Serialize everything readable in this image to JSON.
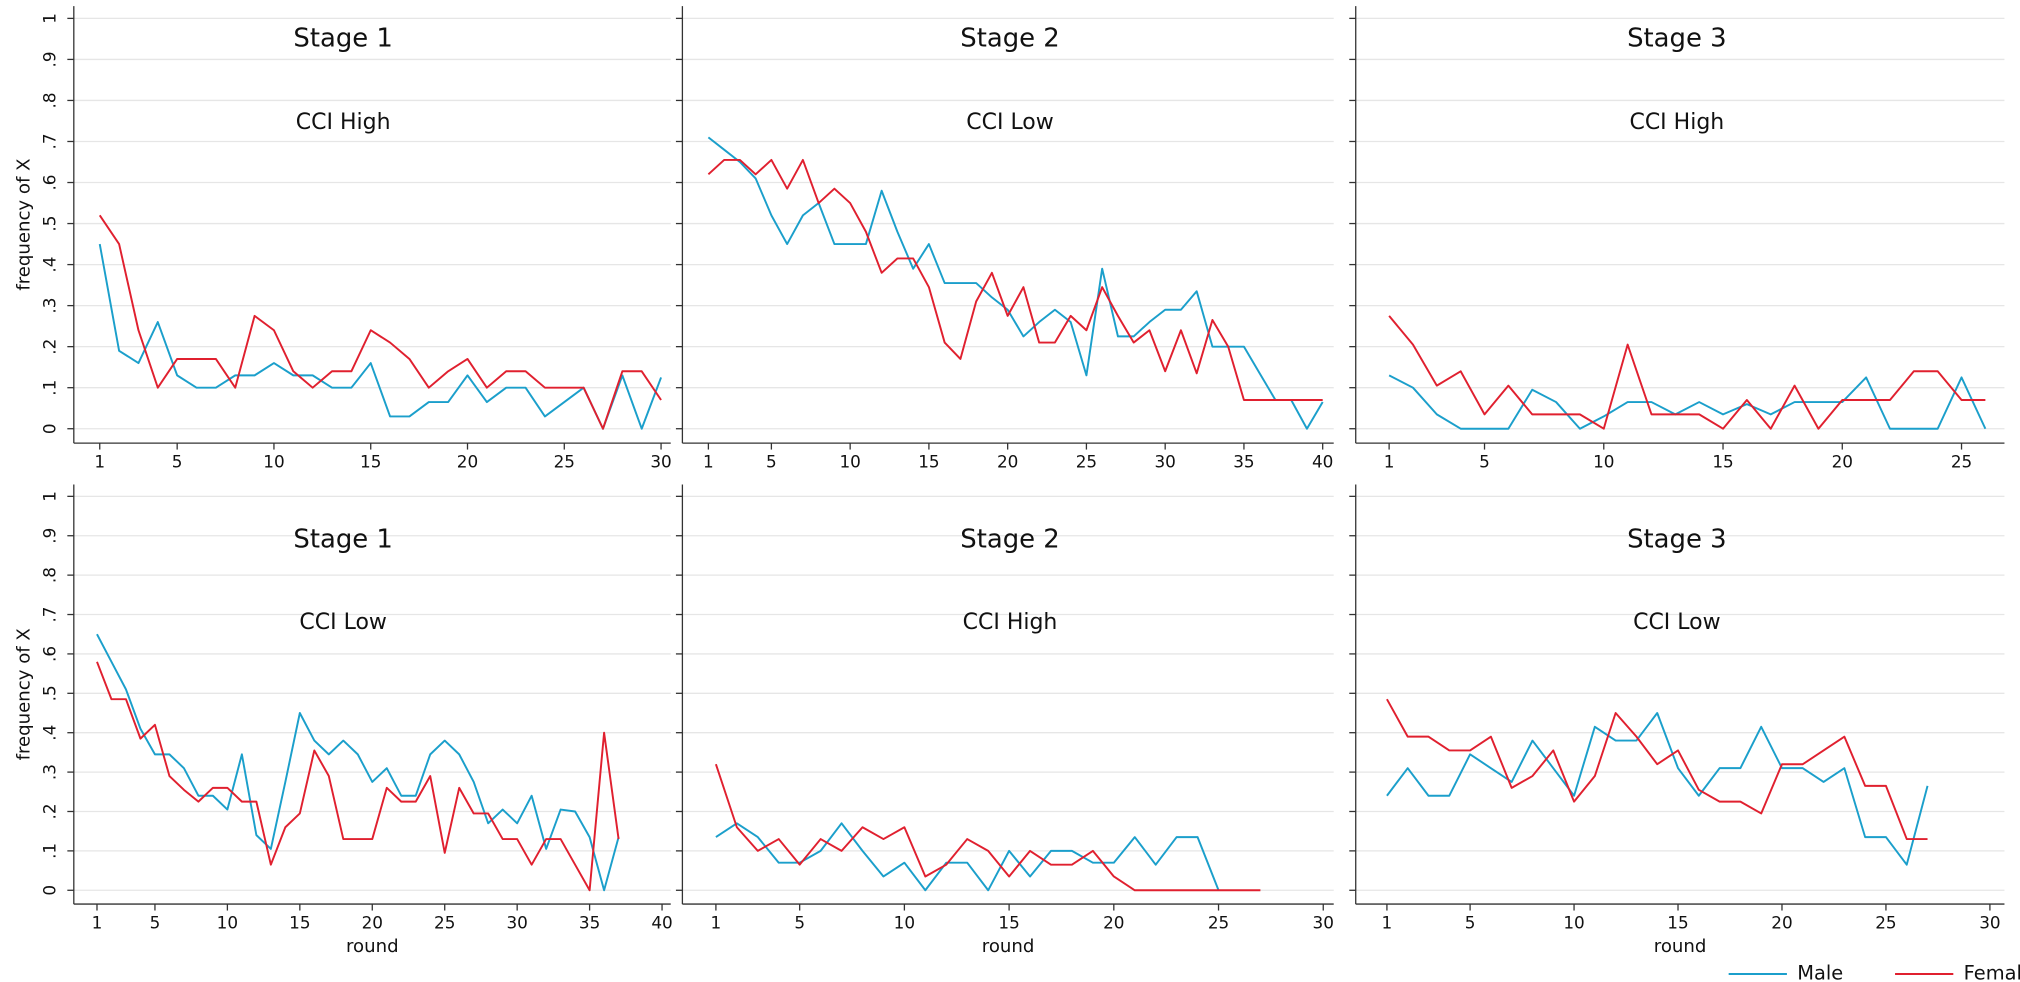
{
  "chart_data": {
    "type": "line",
    "ylabel": "frequency of X",
    "xlabel": "round",
    "ylim": [
      -0.035,
      1.03
    ],
    "yticks": [
      0,
      {
        "value": 0.1,
        "label": ".1"
      },
      {
        "value": 0.2,
        "label": ".2"
      },
      {
        "value": 0.3,
        "label": ".3"
      },
      {
        "value": 0.4,
        "label": ".4"
      },
      {
        "value": 0.5,
        "label": ".5"
      },
      {
        "value": 0.6,
        "label": ".6"
      },
      {
        "value": 0.7,
        "label": ".7"
      },
      {
        "value": 0.8,
        "label": ".8"
      },
      {
        "value": 0.9,
        "label": ".9"
      },
      1
    ],
    "grid": true,
    "legend": {
      "position": "bottom-right",
      "series": [
        {
          "name": "Male",
          "color": "#1b9fcb"
        },
        {
          "name": "Female",
          "color": "#e0202f"
        }
      ]
    },
    "panels": [
      {
        "title": "Stage 1",
        "subtitle": "CCI High",
        "xlim": [
          -0.34,
          30.5
        ],
        "xticks": [
          1,
          5,
          10,
          15,
          20,
          25,
          30
        ],
        "series": [
          {
            "x": [
              1,
              2,
              3,
              4,
              5,
              6,
              7,
              8,
              9,
              10,
              11,
              12,
              13,
              14,
              15,
              16,
              17,
              18,
              19,
              20,
              21,
              22,
              23,
              24,
              25,
              26,
              27,
              28,
              29,
              30
            ],
            "values": [
              0.45,
              0.19,
              0.16,
              0.26,
              0.13,
              0.1,
              0.1,
              0.13,
              0.13,
              0.16,
              0.13,
              0.13,
              0.1,
              0.1,
              0.16,
              0.03,
              0.03,
              0.065,
              0.065,
              0.13,
              0.065,
              0.1,
              0.1,
              0.03,
              0.065,
              0.1,
              0,
              0.13,
              0,
              0.125
            ]
          },
          {
            "x": [
              1,
              2,
              3,
              4,
              5,
              6,
              7,
              8,
              9,
              10,
              11,
              12,
              13,
              14,
              15,
              16,
              17,
              18,
              19,
              20,
              21,
              22,
              23,
              24,
              25,
              26,
              27,
              28,
              29,
              30
            ],
            "values": [
              0.52,
              0.45,
              0.24,
              0.1,
              0.17,
              0.17,
              0.17,
              0.1,
              0.275,
              0.24,
              0.14,
              0.1,
              0.14,
              0.14,
              0.24,
              0.21,
              0.17,
              0.1,
              0.14,
              0.17,
              0.1,
              0.14,
              0.14,
              0.1,
              0.1,
              0.1,
              0,
              0.14,
              0.14,
              0.07
            ]
          }
        ]
      },
      {
        "title": "Stage 2",
        "subtitle": "CCI Low",
        "xlim": [
          -0.65,
          40.7
        ],
        "xticks": [
          1,
          5,
          10,
          15,
          20,
          25,
          30,
          35,
          40
        ],
        "series": [
          {
            "x": [
              1,
              2,
              3,
              4,
              5,
              6,
              7,
              8,
              9,
              10,
              11,
              12,
              13,
              14,
              15,
              16,
              17,
              18,
              19,
              20,
              21,
              22,
              23,
              24,
              25,
              26,
              27,
              28,
              29,
              30,
              31,
              32,
              33,
              34,
              35,
              36,
              37,
              38,
              39,
              40
            ],
            "values": [
              0.71,
              0.68,
              0.65,
              0.61,
              0.52,
              0.45,
              0.52,
              0.55,
              0.45,
              0.45,
              0.45,
              0.58,
              0.48,
              0.39,
              0.45,
              0.355,
              0.355,
              0.355,
              0.32,
              0.29,
              0.225,
              0.26,
              0.29,
              0.26,
              0.13,
              0.39,
              0.225,
              0.225,
              0.26,
              0.29,
              0.29,
              0.335,
              0.2,
              0.2,
              0.2,
              0.135,
              0.07,
              0.07,
              0,
              0.065
            ]
          },
          {
            "x": [
              1,
              2,
              3,
              4,
              5,
              6,
              7,
              8,
              9,
              10,
              11,
              12,
              13,
              14,
              15,
              16,
              17,
              18,
              19,
              20,
              21,
              22,
              23,
              24,
              25,
              26,
              27,
              28,
              29,
              30,
              31,
              32,
              33,
              34,
              35,
              36,
              37,
              38,
              39,
              40
            ],
            "values": [
              0.62,
              0.655,
              0.655,
              0.62,
              0.655,
              0.585,
              0.655,
              0.55,
              0.585,
              0.55,
              0.48,
              0.38,
              0.415,
              0.415,
              0.345,
              0.21,
              0.17,
              0.31,
              0.38,
              0.275,
              0.345,
              0.21,
              0.21,
              0.275,
              0.24,
              0.345,
              0.275,
              0.21,
              0.24,
              0.14,
              0.24,
              0.135,
              0.265,
              0.2,
              0.07,
              0.07,
              0.07,
              0.07,
              0.07,
              0.07
            ]
          }
        ]
      },
      {
        "title": "Stage 3",
        "subtitle": "CCI High",
        "xlim": [
          -0.4,
          26.8
        ],
        "xticks": [
          1,
          5,
          10,
          15,
          20,
          25
        ],
        "series": [
          {
            "x": [
              1,
              2,
              3,
              4,
              5,
              6,
              7,
              8,
              9,
              10,
              11,
              12,
              13,
              14,
              15,
              16,
              17,
              18,
              19,
              20,
              21,
              22,
              23,
              24,
              25,
              26
            ],
            "values": [
              0.13,
              0.1,
              0.035,
              0,
              0,
              0,
              0.095,
              0.065,
              0,
              0.03,
              0.065,
              0.065,
              0.035,
              0.065,
              0.035,
              0.06,
              0.035,
              0.065,
              0.065,
              0.065,
              0.125,
              0,
              0,
              0,
              0.125,
              0
            ]
          },
          {
            "x": [
              1,
              2,
              3,
              4,
              5,
              6,
              7,
              8,
              9,
              10,
              11,
              12,
              13,
              14,
              15,
              16,
              17,
              18,
              19,
              20,
              21,
              22,
              23,
              24,
              25,
              26
            ],
            "values": [
              0.275,
              0.205,
              0.105,
              0.14,
              0.035,
              0.105,
              0.035,
              0.035,
              0.035,
              0,
              0.205,
              0.035,
              0.035,
              0.035,
              0,
              0.07,
              0,
              0.105,
              0,
              0.07,
              0.07,
              0.07,
              0.14,
              0.14,
              0.07,
              0.07
            ]
          }
        ]
      },
      {
        "title": "Stage 1",
        "subtitle": "CCI Low",
        "xlim": [
          -0.6,
          40.6
        ],
        "xticks": [
          1,
          5,
          10,
          15,
          20,
          25,
          30,
          35,
          40
        ],
        "series": [
          {
            "x": [
              1,
              2,
              3,
              4,
              5,
              6,
              7,
              8,
              9,
              10,
              11,
              12,
              13,
              14,
              15,
              16,
              17,
              18,
              19,
              20,
              21,
              22,
              23,
              24,
              25,
              26,
              27,
              28,
              29,
              30,
              31,
              32,
              33,
              34,
              35,
              36,
              37
            ],
            "values": [
              0.65,
              0.58,
              0.51,
              0.41,
              0.345,
              0.345,
              0.31,
              0.24,
              0.24,
              0.205,
              0.345,
              0.14,
              0.105,
              0.275,
              0.45,
              0.38,
              0.345,
              0.38,
              0.345,
              0.275,
              0.31,
              0.24,
              0.24,
              0.345,
              0.38,
              0.345,
              0.275,
              0.17,
              0.205,
              0.17,
              0.24,
              0.105,
              0.205,
              0.2,
              0.135,
              0,
              0.135
            ]
          },
          {
            "x": [
              1,
              2,
              3,
              4,
              5,
              6,
              7,
              8,
              9,
              10,
              11,
              12,
              13,
              14,
              15,
              16,
              17,
              18,
              19,
              20,
              21,
              22,
              23,
              24,
              25,
              26,
              27,
              28,
              29,
              30,
              31,
              32,
              33,
              34,
              35,
              36,
              37
            ],
            "values": [
              0.58,
              0.485,
              0.485,
              0.385,
              0.42,
              0.29,
              0.255,
              0.225,
              0.26,
              0.26,
              0.225,
              0.225,
              0.065,
              0.16,
              0.195,
              0.355,
              0.29,
              0.13,
              0.13,
              0.13,
              0.26,
              0.225,
              0.225,
              0.29,
              0.095,
              0.26,
              0.195,
              0.195,
              0.13,
              0.13,
              0.065,
              0.13,
              0.13,
              0.065,
              0,
              0.4,
              0.13
            ]
          }
        ]
      },
      {
        "title": "Stage 2",
        "subtitle": "CCI High",
        "xlim": [
          -0.6,
          30.5
        ],
        "xticks": [
          1,
          5,
          10,
          15,
          20,
          25,
          30
        ],
        "series": [
          {
            "x": [
              1,
              2,
              3,
              4,
              5,
              6,
              7,
              8,
              9,
              10,
              11,
              12,
              13,
              14,
              15,
              16,
              17,
              18,
              19,
              20,
              21,
              22,
              23,
              24,
              25
            ],
            "values": [
              0.135,
              0.17,
              0.135,
              0.07,
              0.07,
              0.1,
              0.17,
              0.1,
              0.035,
              0.07,
              0,
              0.07,
              0.07,
              0,
              0.1,
              0.035,
              0.1,
              0.1,
              0.07,
              0.07,
              0.135,
              0.065,
              0.135,
              0.135,
              0
            ]
          },
          {
            "x": [
              1,
              2,
              3,
              4,
              5,
              6,
              7,
              8,
              9,
              10,
              11,
              12,
              13,
              14,
              15,
              16,
              17,
              18,
              19,
              20,
              21,
              22,
              23,
              24,
              25,
              26,
              27
            ],
            "values": [
              0.32,
              0.16,
              0.1,
              0.13,
              0.065,
              0.13,
              0.1,
              0.16,
              0.13,
              0.16,
              0.035,
              0.065,
              0.13,
              0.1,
              0.035,
              0.1,
              0.065,
              0.065,
              0.1,
              0.035,
              0,
              0,
              0,
              0,
              0,
              0,
              0
            ]
          }
        ]
      },
      {
        "title": "Stage 3",
        "subtitle": "CCI Low",
        "xlim": [
          -0.5,
          30.7
        ],
        "xticks": [
          1,
          5,
          10,
          15,
          20,
          25,
          30
        ],
        "series": [
          {
            "x": [
              1,
              2,
              3,
              4,
              5,
              6,
              7,
              8,
              9,
              10,
              11,
              12,
              13,
              14,
              15,
              16,
              17,
              18,
              19,
              20,
              21,
              22,
              23,
              24,
              25,
              26,
              27
            ],
            "values": [
              0.24,
              0.31,
              0.24,
              0.24,
              0.345,
              0.31,
              0.275,
              0.38,
              0.31,
              0.24,
              0.415,
              0.38,
              0.38,
              0.45,
              0.31,
              0.24,
              0.31,
              0.31,
              0.415,
              0.31,
              0.31,
              0.275,
              0.31,
              0.135,
              0.135,
              0.065,
              0.265
            ]
          },
          {
            "x": [
              1,
              2,
              3,
              4,
              5,
              6,
              7,
              8,
              9,
              10,
              11,
              12,
              13,
              14,
              15,
              16,
              17,
              18,
              19,
              20,
              21,
              22,
              23,
              24,
              25,
              26,
              27
            ],
            "values": [
              0.485,
              0.39,
              0.39,
              0.355,
              0.355,
              0.39,
              0.26,
              0.29,
              0.355,
              0.225,
              0.29,
              0.45,
              0.39,
              0.32,
              0.355,
              0.255,
              0.225,
              0.225,
              0.195,
              0.32,
              0.32,
              0.355,
              0.39,
              0.265,
              0.265,
              0.13,
              0.13
            ]
          }
        ]
      }
    ]
  }
}
